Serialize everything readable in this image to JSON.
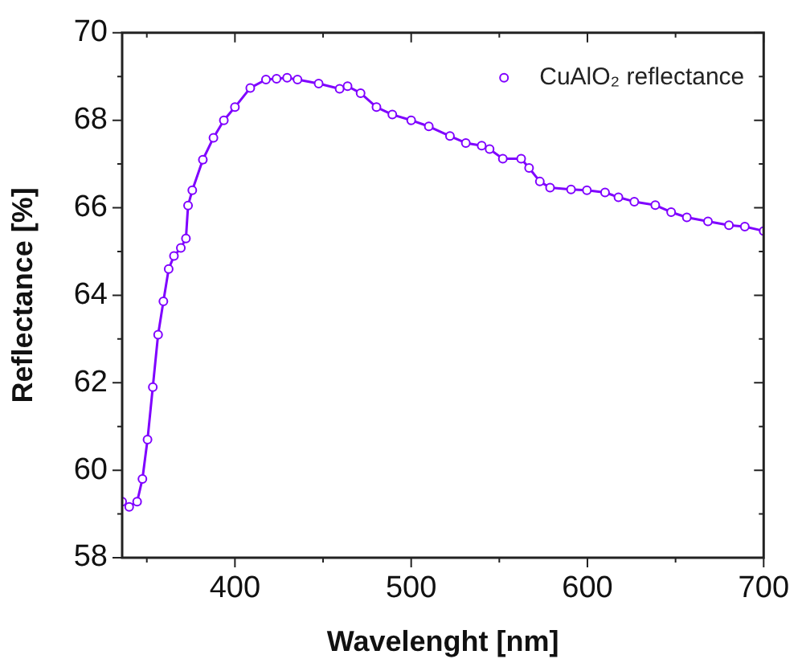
{
  "chart_data": {
    "type": "line",
    "xlabel": "Wavelenght [nm]",
    "ylabel": "Reflectance [%]",
    "xlim": [
      336,
      700
    ],
    "xticks": [
      400,
      500,
      600,
      700
    ],
    "ylim": [
      58,
      70
    ],
    "yticks": [
      58,
      60,
      62,
      64,
      66,
      68,
      70
    ],
    "grid": false,
    "legend": "top right",
    "marker": "circle",
    "series": [
      {
        "name": "CuAlO₂ reflectance",
        "color": "#7f00ff",
        "x": [
          336,
          340,
          344.5,
          347.5,
          350.4,
          353.4,
          356.4,
          359.4,
          362.4,
          365.4,
          369.3,
          372.2,
          373.4,
          375.8,
          381.8,
          387.8,
          393.7,
          400,
          408.7,
          417.6,
          423.6,
          429.6,
          435.5,
          447.5,
          459.4,
          463.9,
          471.3,
          480.3,
          489.3,
          500,
          510,
          522,
          531,
          540,
          544.5,
          552,
          562.4,
          566.9,
          573,
          578.8,
          590.7,
          599.7,
          610,
          617.6,
          626.6,
          638.5,
          647.5,
          656.4,
          668.4,
          680.3,
          689.3,
          700
        ],
        "values": [
          59.28,
          59.16,
          59.28,
          59.8,
          60.7,
          61.9,
          63.1,
          63.86,
          64.6,
          64.9,
          65.08,
          65.3,
          66.05,
          66.4,
          67.1,
          67.6,
          68.0,
          68.3,
          68.74,
          68.93,
          68.95,
          68.97,
          68.93,
          68.84,
          68.72,
          68.78,
          68.62,
          68.3,
          68.13,
          68.0,
          67.86,
          67.64,
          67.48,
          67.42,
          67.34,
          67.12,
          67.12,
          66.91,
          66.6,
          66.46,
          66.42,
          66.4,
          66.35,
          66.24,
          66.14,
          66.06,
          65.9,
          65.78,
          65.69,
          65.6,
          65.57,
          65.47
        ]
      }
    ]
  }
}
